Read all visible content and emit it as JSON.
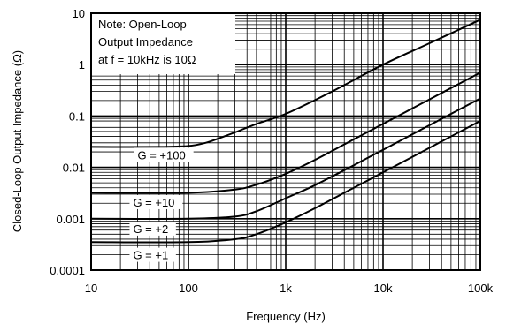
{
  "chart_data": {
    "type": "line",
    "xscale": "log",
    "yscale": "log",
    "xlim": [
      10,
      100000
    ],
    "ylim": [
      0.0001,
      10
    ],
    "xlabel": "Frequency (Hz)",
    "ylabel": "Closed-Loop Output Impedance (Ω)",
    "xticks": [
      10,
      100,
      1000,
      10000,
      100000
    ],
    "xtick_labels": [
      "10",
      "100",
      "1k",
      "10k",
      "100k"
    ],
    "yticks": [
      0.0001,
      0.001,
      0.01,
      0.1,
      1,
      10
    ],
    "ytick_labels": [
      "0.0001",
      "0.001",
      "0.01",
      "0.1",
      "1",
      "10"
    ],
    "grid": true,
    "note": [
      "Note: Open-Loop",
      "Output Impedance",
      "at f = 10kHz is 10Ω"
    ],
    "series": [
      {
        "name": "G = +100",
        "x": [
          10,
          50,
          100,
          150,
          200,
          300,
          500,
          1000,
          3000,
          10000,
          30000,
          100000
        ],
        "y": [
          0.025,
          0.025,
          0.026,
          0.03,
          0.036,
          0.048,
          0.07,
          0.11,
          0.3,
          1.0,
          2.6,
          7.5
        ]
      },
      {
        "name": "G = +10",
        "x": [
          10,
          100,
          300,
          500,
          1000,
          2000,
          5000,
          10000,
          30000,
          100000
        ],
        "y": [
          0.0032,
          0.0032,
          0.0037,
          0.0046,
          0.0075,
          0.014,
          0.035,
          0.07,
          0.21,
          0.7
        ]
      },
      {
        "name": "G = +2",
        "x": [
          10,
          100,
          300,
          500,
          1000,
          2000,
          5000,
          10000,
          30000,
          100000
        ],
        "y": [
          0.001,
          0.001,
          0.0011,
          0.0014,
          0.0025,
          0.0045,
          0.011,
          0.022,
          0.066,
          0.22
        ]
      },
      {
        "name": "G = +1",
        "x": [
          10,
          100,
          300,
          500,
          1000,
          2000,
          5000,
          10000,
          30000,
          100000
        ],
        "y": [
          0.00035,
          0.00035,
          0.0004,
          0.0005,
          0.00085,
          0.0016,
          0.004,
          0.008,
          0.024,
          0.08
        ]
      }
    ],
    "series_label_anchors": [
      {
        "x": 30,
        "y": 0.015
      },
      {
        "x": 27,
        "y": 0.0018
      },
      {
        "x": 27,
        "y": 0.00055
      },
      {
        "x": 27,
        "y": 0.00017
      }
    ]
  }
}
